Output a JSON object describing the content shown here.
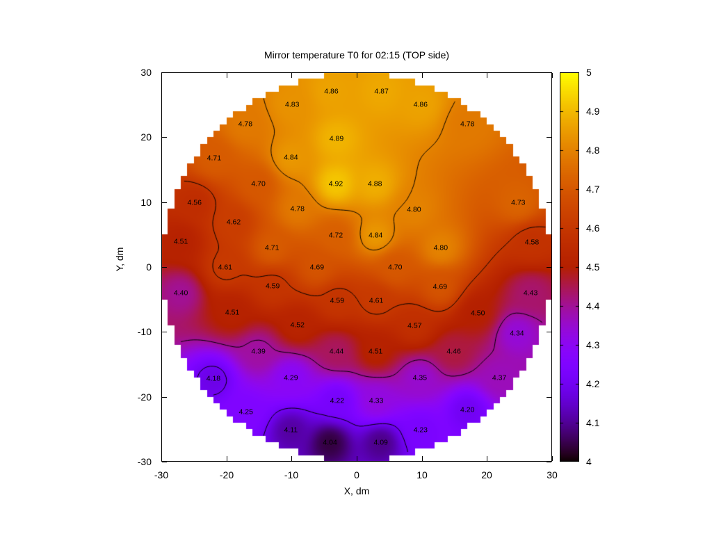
{
  "background_color": "#ffffff",
  "chart_data": {
    "type": "heatmap",
    "title": "Mirror temperature T0 for 02:15 (TOP side)",
    "xlabel": "X, dm",
    "ylabel": "Y, dm",
    "xlim": [
      -30,
      30
    ],
    "ylim": [
      -30,
      30
    ],
    "xticks": [
      -30,
      -20,
      -10,
      0,
      10,
      20,
      30
    ],
    "yticks": [
      -30,
      -20,
      -10,
      0,
      10,
      20,
      30
    ],
    "grid": false,
    "legend_position": "right-colorbar",
    "mask": {
      "shape": "pixelated-circle",
      "radius_dm": 30
    },
    "colorbar": {
      "min": 4,
      "max": 5,
      "tick_step": 0.1,
      "tick_labels": [
        "5",
        "4.9",
        "4.8",
        "4.7",
        "4.6",
        "4.5",
        "4.4",
        "4.3",
        "4.2",
        "4.1",
        "4"
      ],
      "palette": "gnuplot-pm3d (black - purple - violet - red - orange - yellow)",
      "palette_hex_samples": [
        "#000000",
        "#8004FF",
        "#B42000",
        "#DD6C00",
        "#F2BA00",
        "#FFFF00"
      ]
    },
    "contour_levels": [
      4.2,
      4.4,
      4.6,
      4.8
    ],
    "contour_color": "#000000",
    "points": [
      {
        "x": -3.9,
        "y": 27.0,
        "v": 4.86
      },
      {
        "x": 3.8,
        "y": 27.0,
        "v": 4.87
      },
      {
        "x": -9.9,
        "y": 25.0,
        "v": 4.83
      },
      {
        "x": 9.8,
        "y": 25.0,
        "v": 4.86
      },
      {
        "x": -17.1,
        "y": 22.0,
        "v": 4.78
      },
      {
        "x": 17.0,
        "y": 22.0,
        "v": 4.78
      },
      {
        "x": -3.1,
        "y": 19.7,
        "v": 4.89
      },
      {
        "x": -21.9,
        "y": 16.7,
        "v": 4.71
      },
      {
        "x": -10.1,
        "y": 16.8,
        "v": 4.84
      },
      {
        "x": -15.1,
        "y": 12.8,
        "v": 4.7
      },
      {
        "x": -3.2,
        "y": 12.8,
        "v": 4.92
      },
      {
        "x": 2.8,
        "y": 12.8,
        "v": 4.88
      },
      {
        "x": -24.9,
        "y": 9.9,
        "v": 4.56
      },
      {
        "x": 24.8,
        "y": 9.9,
        "v": 4.73
      },
      {
        "x": -9.1,
        "y": 8.9,
        "v": 4.78
      },
      {
        "x": 8.8,
        "y": 8.8,
        "v": 4.8
      },
      {
        "x": -18.9,
        "y": 6.9,
        "v": 4.62
      },
      {
        "x": -3.2,
        "y": 4.8,
        "v": 4.72
      },
      {
        "x": 2.9,
        "y": 4.8,
        "v": 4.84
      },
      {
        "x": -27.0,
        "y": 3.9,
        "v": 4.51
      },
      {
        "x": 26.9,
        "y": 3.8,
        "v": 4.58
      },
      {
        "x": -13.0,
        "y": 2.9,
        "v": 4.71
      },
      {
        "x": 12.9,
        "y": 2.9,
        "v": 4.8
      },
      {
        "x": -20.2,
        "y": -0.1,
        "v": 4.61
      },
      {
        "x": -6.1,
        "y": -0.1,
        "v": 4.69
      },
      {
        "x": 5.9,
        "y": -0.1,
        "v": 4.7
      },
      {
        "x": -12.9,
        "y": -3.0,
        "v": 4.59
      },
      {
        "x": 12.8,
        "y": -3.1,
        "v": 4.69
      },
      {
        "x": -27.0,
        "y": -4.1,
        "v": 4.4
      },
      {
        "x": 26.7,
        "y": -4.1,
        "v": 4.43
      },
      {
        "x": -3.0,
        "y": -5.3,
        "v": 4.59
      },
      {
        "x": 3.0,
        "y": -5.3,
        "v": 4.61
      },
      {
        "x": -19.1,
        "y": -7.1,
        "v": 4.51
      },
      {
        "x": 18.6,
        "y": -7.2,
        "v": 4.5
      },
      {
        "x": -9.1,
        "y": -9.0,
        "v": 4.52
      },
      {
        "x": 8.9,
        "y": -9.1,
        "v": 4.57
      },
      {
        "x": 24.6,
        "y": -10.3,
        "v": 4.34
      },
      {
        "x": -15.1,
        "y": -13.1,
        "v": 4.39
      },
      {
        "x": -3.1,
        "y": -13.1,
        "v": 4.44
      },
      {
        "x": 2.9,
        "y": -13.1,
        "v": 4.51
      },
      {
        "x": 14.9,
        "y": -13.1,
        "v": 4.46
      },
      {
        "x": -22.0,
        "y": -17.3,
        "v": 4.18
      },
      {
        "x": -10.1,
        "y": -17.1,
        "v": 4.29
      },
      {
        "x": 9.7,
        "y": -17.1,
        "v": 4.35
      },
      {
        "x": 21.9,
        "y": -17.1,
        "v": 4.37
      },
      {
        "x": -3.0,
        "y": -20.7,
        "v": 4.22
      },
      {
        "x": 3.0,
        "y": -20.7,
        "v": 4.33
      },
      {
        "x": -17.0,
        "y": -22.4,
        "v": 4.25
      },
      {
        "x": 17.0,
        "y": -22.1,
        "v": 4.2
      },
      {
        "x": -10.1,
        "y": -25.2,
        "v": 4.11
      },
      {
        "x": 9.8,
        "y": -25.2,
        "v": 4.23
      },
      {
        "x": -4.1,
        "y": -27.1,
        "v": 4.04
      },
      {
        "x": 3.7,
        "y": -27.1,
        "v": 4.09
      }
    ]
  }
}
